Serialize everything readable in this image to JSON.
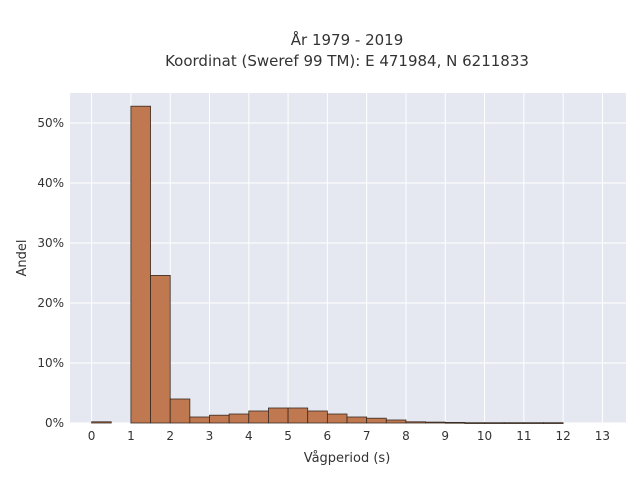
{
  "chart_data": {
    "type": "bar",
    "title": "År 1979 - 2019",
    "subtitle": "Koordinat (Sweref 99 TM): E 471984, N 6211833",
    "xlabel": "Vågperiod (s)",
    "ylabel": "Andel",
    "xlim": [
      -0.55,
      13.6
    ],
    "ylim": [
      0,
      55
    ],
    "x_ticks": [
      0,
      1,
      2,
      3,
      4,
      5,
      6,
      7,
      8,
      9,
      10,
      11,
      12,
      13
    ],
    "y_ticks": [
      0,
      10,
      20,
      30,
      40,
      50
    ],
    "y_tick_labels": [
      "0%",
      "10%",
      "20%",
      "30%",
      "40%",
      "50%"
    ],
    "bin_width": 0.5,
    "bins": [
      {
        "x0": 0.0,
        "value": 0.2
      },
      {
        "x0": 1.0,
        "value": 52.8
      },
      {
        "x0": 1.5,
        "value": 24.6
      },
      {
        "x0": 2.0,
        "value": 4.0
      },
      {
        "x0": 2.5,
        "value": 1.0
      },
      {
        "x0": 3.0,
        "value": 1.3
      },
      {
        "x0": 3.5,
        "value": 1.5
      },
      {
        "x0": 4.0,
        "value": 2.0
      },
      {
        "x0": 4.5,
        "value": 2.5
      },
      {
        "x0": 5.0,
        "value": 2.5
      },
      {
        "x0": 5.5,
        "value": 2.0
      },
      {
        "x0": 6.0,
        "value": 1.5
      },
      {
        "x0": 6.5,
        "value": 1.0
      },
      {
        "x0": 7.0,
        "value": 0.8
      },
      {
        "x0": 7.5,
        "value": 0.5
      },
      {
        "x0": 8.0,
        "value": 0.2
      },
      {
        "x0": 8.5,
        "value": 0.15
      },
      {
        "x0": 9.0,
        "value": 0.1
      },
      {
        "x0": 9.5,
        "value": 0.05
      },
      {
        "x0": 10.0,
        "value": 0.05
      },
      {
        "x0": 10.5,
        "value": 0.05
      },
      {
        "x0": 11.0,
        "value": 0.05
      },
      {
        "x0": 11.5,
        "value": 0.05
      }
    ],
    "grid": true,
    "colors": {
      "bar_fill": "#c07850",
      "bar_stroke": "#3a2a20",
      "plot_bg": "#e5e8f0",
      "grid": "#ffffff"
    }
  }
}
